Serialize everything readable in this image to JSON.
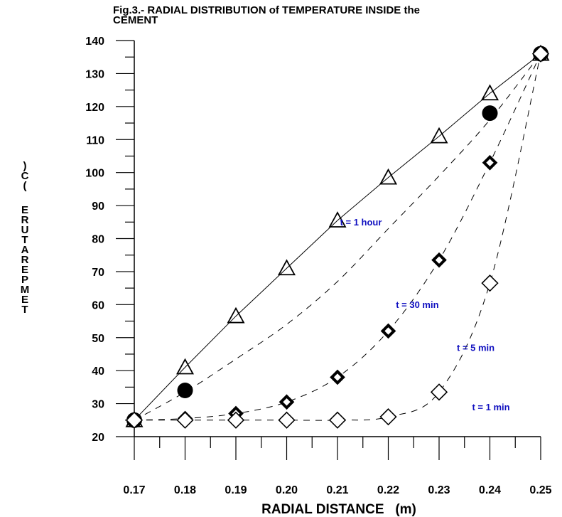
{
  "chart_data": {
    "type": "line",
    "title_line1": "Fig.3.- RADIAL DISTRIBUTION of TEMPERATURE INSIDE the",
    "title_line2": "CEMENT",
    "xlabel": "RADIAL DISTANCE   (m)",
    "ylabel": ")C(  ERUTAREPMET",
    "xlim": [
      0.17,
      0.25
    ],
    "ylim": [
      20,
      140
    ],
    "x_ticks": [
      "0.17",
      "0.18",
      "0.19",
      "0.20",
      "0.21",
      "0.22",
      "0.23",
      "0.24",
      "0.25"
    ],
    "y_ticks": [
      "20",
      "30",
      "40",
      "50",
      "60",
      "70",
      "80",
      "90",
      "100",
      "110",
      "120",
      "130",
      "140"
    ],
    "x": [
      0.17,
      0.18,
      0.19,
      0.2,
      0.21,
      0.22,
      0.23,
      0.24,
      0.25
    ],
    "series": [
      {
        "name": "t = 1  hour",
        "marker": "triangle-open",
        "line": "solid",
        "values": [
          25,
          41,
          56.5,
          71,
          85.5,
          98.5,
          111,
          124,
          136
        ]
      },
      {
        "name": "t = 30 min",
        "marker": "circle-filled",
        "line": "dashed",
        "points": [
          [
            0.17,
            25
          ],
          [
            0.18,
            34
          ],
          [
            0.24,
            118
          ],
          [
            0.25,
            136
          ]
        ],
        "curve": [
          [
            0.17,
            25
          ],
          [
            0.18,
            33.5
          ],
          [
            0.19,
            43.5
          ],
          [
            0.2,
            54
          ],
          [
            0.21,
            67
          ],
          [
            0.22,
            83
          ],
          [
            0.23,
            99
          ],
          [
            0.24,
            116
          ],
          [
            0.25,
            136
          ]
        ]
      },
      {
        "name": "t = 5 min",
        "marker": "diamond-bold",
        "line": "dashed",
        "values": [
          25,
          25.5,
          27,
          30.5,
          38,
          52,
          73.5,
          103,
          136
        ]
      },
      {
        "name": "t = 1 min",
        "marker": "diamond-open",
        "line": "dashed",
        "values": [
          25,
          25,
          25,
          25,
          25,
          26,
          33.5,
          66.5,
          136
        ]
      }
    ],
    "annotations": [
      {
        "text": "t = 1  hour",
        "x": 0.2105,
        "y": 84
      },
      {
        "text": "t = 30 min",
        "x": 0.2215,
        "y": 59
      },
      {
        "text": "t = 5 min",
        "x": 0.2335,
        "y": 46
      },
      {
        "text": "t = 1 min",
        "x": 0.2365,
        "y": 28
      }
    ],
    "grid": false,
    "legend": "none"
  }
}
